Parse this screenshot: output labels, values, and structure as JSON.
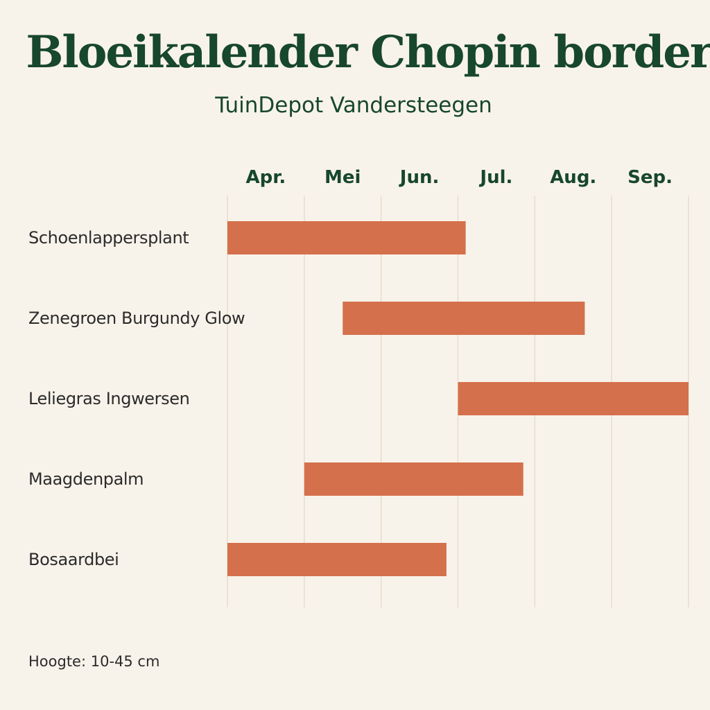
{
  "header": {
    "title": "Bloeikalender Chopin border",
    "subtitle": "TuinDepot Vandersteegen"
  },
  "footer": {
    "text": "Hoogte: 10-45 cm"
  },
  "colors": {
    "background": "#f8f3ea",
    "bar": "#d4704c",
    "heading": "#17472c",
    "label": "#2b2b2b",
    "grid": "#e6ddcc"
  },
  "chart_data": {
    "type": "bar",
    "orientation": "horizontal-gantt",
    "months": [
      "Apr.",
      "Mei",
      "Jun.",
      "Jul.",
      "Aug.",
      "Sep."
    ],
    "x_axis_position": "top",
    "grid": true,
    "series": [
      {
        "label": "Schoenlappersplant",
        "start": 0.0,
        "end": 3.1
      },
      {
        "label": "Zenegroen Burgundy Glow",
        "start": 1.5,
        "end": 4.65
      },
      {
        "label": "Leliegras Ingwersen",
        "start": 3.0,
        "end": 6.0
      },
      {
        "label": "Maagdenpalm",
        "start": 1.0,
        "end": 3.85
      },
      {
        "label": "Bosaardbei",
        "start": 0.0,
        "end": 2.85
      }
    ],
    "value_unit": "months from start of April"
  }
}
